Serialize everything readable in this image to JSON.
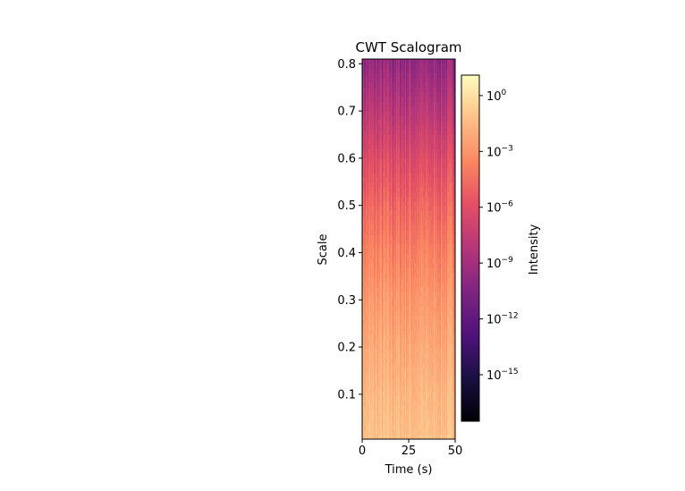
{
  "chart_data": {
    "type": "heatmap",
    "title": "CWT Scalogram",
    "xlabel": "Time (s)",
    "ylabel": "Scale",
    "xlim": [
      0,
      50
    ],
    "ylim": [
      0.005,
      0.81
    ],
    "x_ticks": [
      {
        "value": 0,
        "label": "0"
      },
      {
        "value": 25,
        "label": "25"
      },
      {
        "value": 50,
        "label": "50"
      }
    ],
    "y_ticks": [
      {
        "value": 0.1,
        "label": "0.1"
      },
      {
        "value": 0.2,
        "label": "0.2"
      },
      {
        "value": 0.3,
        "label": "0.3"
      },
      {
        "value": 0.4,
        "label": "0.4"
      },
      {
        "value": 0.5,
        "label": "0.5"
      },
      {
        "value": 0.6,
        "label": "0.6"
      },
      {
        "value": 0.7,
        "label": "0.7"
      },
      {
        "value": 0.8,
        "label": "0.8"
      }
    ],
    "colormap": "magma",
    "colorbar": {
      "label": "Intensity",
      "scale": "log",
      "log_range": [
        -17.5,
        1.1
      ],
      "ticks": [
        {
          "exponent": 0,
          "label": "10",
          "sup": "0"
        },
        {
          "exponent": -3,
          "label": "10",
          "sup": "−3"
        },
        {
          "exponent": -6,
          "label": "10",
          "sup": "−6"
        },
        {
          "exponent": -9,
          "label": "10",
          "sup": "−9"
        },
        {
          "exponent": -12,
          "label": "10",
          "sup": "−12"
        },
        {
          "exponent": -15,
          "label": "10",
          "sup": "−15"
        }
      ]
    },
    "intensity_profile": {
      "scale": [
        0.005,
        0.1,
        0.2,
        0.3,
        0.4,
        0.5,
        0.6,
        0.7,
        0.81
      ],
      "log10_intensity": [
        -1.2,
        -1.6,
        -2.2,
        -2.9,
        -3.8,
        -4.9,
        -6.3,
        -8.0,
        -9.8
      ]
    }
  }
}
